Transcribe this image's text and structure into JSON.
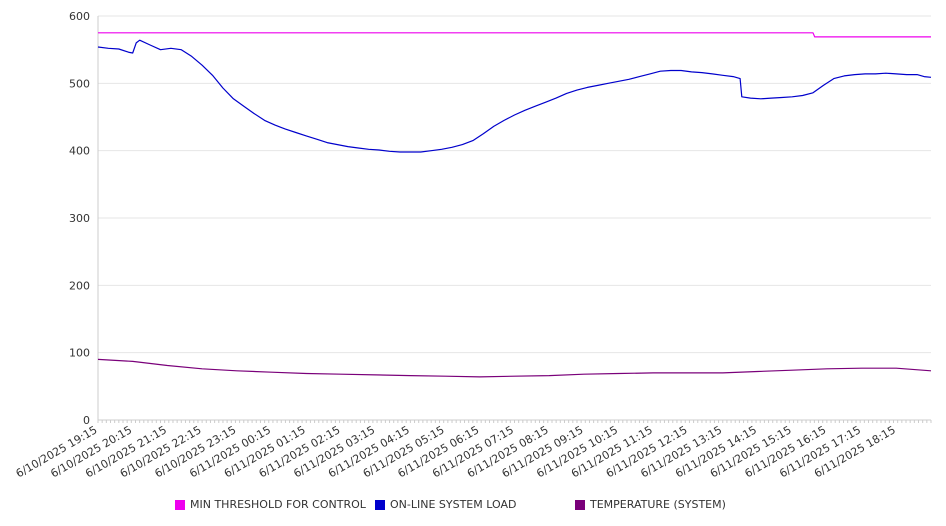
{
  "chart_data": {
    "type": "line",
    "title": "",
    "xlabel": "",
    "ylabel": "",
    "ylim": [
      0,
      600
    ],
    "yticks": [
      "0",
      "100",
      "200",
      "300",
      "400",
      "500",
      "600"
    ],
    "categories": [
      "6/10/2025 19:15",
      "6/10/2025 20:15",
      "6/10/2025 21:15",
      "6/10/2025 22:15",
      "6/10/2025 23:15",
      "6/11/2025 00:15",
      "6/11/2025 01:15",
      "6/11/2025 02:15",
      "6/11/2025 03:15",
      "6/11/2025 04:15",
      "6/11/2025 05:15",
      "6/11/2025 06:15",
      "6/11/2025 07:15",
      "6/11/2025 08:15",
      "6/11/2025 09:15",
      "6/11/2025 10:15",
      "6/11/2025 11:15",
      "6/11/2025 12:15",
      "6/11/2025 13:15",
      "6/11/2025 14:15",
      "6/11/2025 15:15",
      "6/11/2025 16:15",
      "6/11/2025 17:15",
      "6/11/2025 18:15"
    ],
    "xrange_hours": [
      0,
      24
    ],
    "grid": true,
    "legend_position": "bottom",
    "series": [
      {
        "name": "MIN THRESHOLD FOR CONTROL",
        "color": "#ee00ee",
        "points": [
          [
            0,
            575
          ],
          [
            20.6,
            575
          ],
          [
            20.65,
            569
          ],
          [
            24,
            569
          ]
        ]
      },
      {
        "name": "ON-LINE SYSTEM LOAD",
        "color": "#0000cc",
        "points": [
          [
            0,
            554
          ],
          [
            0.3,
            552
          ],
          [
            0.6,
            551
          ],
          [
            0.9,
            546
          ],
          [
            1.0,
            545
          ],
          [
            1.1,
            560
          ],
          [
            1.2,
            564
          ],
          [
            1.5,
            557
          ],
          [
            1.8,
            550
          ],
          [
            2.1,
            552
          ],
          [
            2.4,
            550
          ],
          [
            2.7,
            540
          ],
          [
            3.0,
            527
          ],
          [
            3.3,
            512
          ],
          [
            3.6,
            493
          ],
          [
            3.9,
            477
          ],
          [
            4.2,
            466
          ],
          [
            4.5,
            455
          ],
          [
            4.8,
            445
          ],
          [
            5.1,
            438
          ],
          [
            5.4,
            432
          ],
          [
            5.7,
            427
          ],
          [
            6.0,
            422
          ],
          [
            6.3,
            417
          ],
          [
            6.6,
            412
          ],
          [
            6.9,
            409
          ],
          [
            7.2,
            406
          ],
          [
            7.5,
            404
          ],
          [
            7.8,
            402
          ],
          [
            8.1,
            401
          ],
          [
            8.4,
            399
          ],
          [
            8.7,
            398
          ],
          [
            9.0,
            398
          ],
          [
            9.3,
            398
          ],
          [
            9.6,
            400
          ],
          [
            9.9,
            402
          ],
          [
            10.2,
            405
          ],
          [
            10.5,
            409
          ],
          [
            10.8,
            415
          ],
          [
            11.1,
            425
          ],
          [
            11.4,
            436
          ],
          [
            11.7,
            445
          ],
          [
            12.0,
            453
          ],
          [
            12.3,
            460
          ],
          [
            12.6,
            466
          ],
          [
            12.9,
            472
          ],
          [
            13.2,
            478
          ],
          [
            13.5,
            485
          ],
          [
            13.8,
            490
          ],
          [
            14.1,
            494
          ],
          [
            14.4,
            497
          ],
          [
            14.7,
            500
          ],
          [
            15.0,
            503
          ],
          [
            15.3,
            506
          ],
          [
            15.6,
            510
          ],
          [
            15.9,
            514
          ],
          [
            16.2,
            518
          ],
          [
            16.5,
            519
          ],
          [
            16.8,
            519
          ],
          [
            17.1,
            517
          ],
          [
            17.4,
            516
          ],
          [
            17.7,
            514
          ],
          [
            18.0,
            512
          ],
          [
            18.3,
            510
          ],
          [
            18.5,
            507
          ],
          [
            18.55,
            480
          ],
          [
            18.8,
            478
          ],
          [
            19.1,
            477
          ],
          [
            19.4,
            478
          ],
          [
            19.7,
            479
          ],
          [
            20.0,
            480
          ],
          [
            20.3,
            482
          ],
          [
            20.6,
            486
          ],
          [
            20.9,
            497
          ],
          [
            21.2,
            507
          ],
          [
            21.5,
            511
          ],
          [
            21.8,
            513
          ],
          [
            22.1,
            514
          ],
          [
            22.4,
            514
          ],
          [
            22.7,
            515
          ],
          [
            23.0,
            514
          ],
          [
            23.3,
            513
          ],
          [
            23.6,
            513
          ],
          [
            23.8,
            510
          ],
          [
            24,
            509
          ]
        ]
      },
      {
        "name": "TEMPERATURE (SYSTEM)",
        "color": "#7a007a",
        "points": [
          [
            0,
            90
          ],
          [
            1,
            87
          ],
          [
            2,
            81
          ],
          [
            3,
            76
          ],
          [
            4,
            73
          ],
          [
            5,
            71
          ],
          [
            6,
            69
          ],
          [
            7,
            68
          ],
          [
            8,
            67
          ],
          [
            9,
            66
          ],
          [
            10,
            65
          ],
          [
            11,
            64
          ],
          [
            12,
            65
          ],
          [
            13,
            66
          ],
          [
            14,
            68
          ],
          [
            15,
            69
          ],
          [
            16,
            70
          ],
          [
            17,
            70
          ],
          [
            18,
            70
          ],
          [
            19,
            72
          ],
          [
            20,
            74
          ],
          [
            21,
            76
          ],
          [
            22,
            77
          ],
          [
            23,
            77
          ],
          [
            24,
            73
          ]
        ]
      }
    ]
  }
}
